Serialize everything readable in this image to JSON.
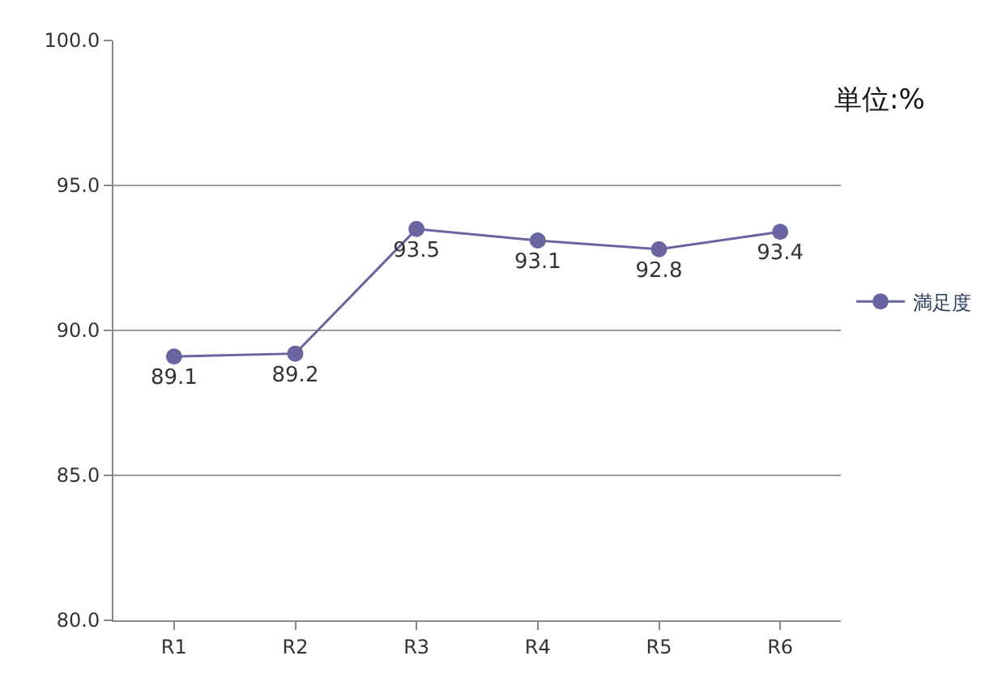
{
  "chart_data": {
    "type": "line",
    "categories": [
      "R1",
      "R2",
      "R3",
      "R4",
      "R5",
      "R6"
    ],
    "series": [
      {
        "name": "満足度",
        "color": "#6a64a0",
        "values": [
          89.1,
          89.2,
          93.5,
          93.1,
          92.8,
          93.4
        ]
      }
    ],
    "ylim": [
      80,
      100
    ],
    "yticks": [
      {
        "value": 80,
        "label": "80.0"
      },
      {
        "value": 85,
        "label": "85.0"
      },
      {
        "value": 90,
        "label": "90.0"
      },
      {
        "value": 95,
        "label": "95.0"
      },
      {
        "value": 100,
        "label": "100.0"
      }
    ],
    "grid": "y",
    "legend": "right",
    "marker": "circle",
    "data_labels": true,
    "annotations": [
      "単位:%"
    ]
  }
}
